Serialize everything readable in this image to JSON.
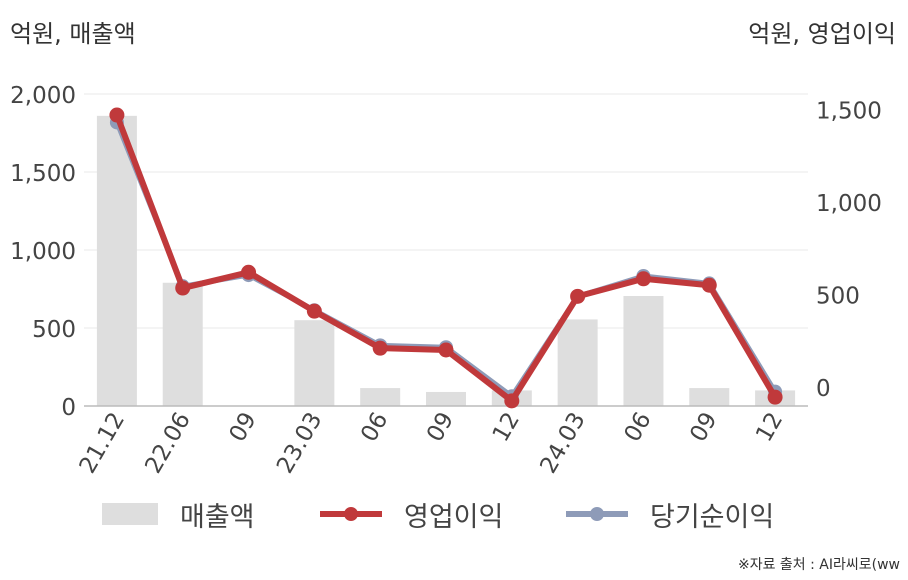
{
  "units": {
    "left": "억원, 매출액",
    "right": "억원, 영업이익"
  },
  "colors": {
    "revenue": "#dedede",
    "operating_profit": "#c0393b",
    "net_income": "#8e9bb8",
    "axis": "#bbbbbb",
    "grid": "#e9e9e9"
  },
  "legend": [
    {
      "key": "revenue",
      "label": "매출액",
      "style": "bar"
    },
    {
      "key": "operating_profit",
      "label": "영업이익",
      "style": "line"
    },
    {
      "key": "net_income",
      "label": "당기순이익",
      "style": "line"
    }
  ],
  "source": "※자료 출처 : AI라씨로(ww",
  "chart_data": {
    "type": "bar+line",
    "categories": [
      "21.12",
      "22.06",
      "09",
      "23.03",
      "06",
      "09",
      "12",
      "24.03",
      "06",
      "09",
      "12"
    ],
    "y_left": {
      "range": [
        0,
        2000
      ],
      "ticks": [
        "0",
        "500",
        "1,000",
        "1,500",
        "2,000"
      ],
      "tick_values": [
        0,
        500,
        1000,
        1500,
        2000
      ]
    },
    "y_right": {
      "range": [
        -100,
        1600
      ],
      "ticks": [
        "0",
        "500",
        "1,000",
        "1,500"
      ],
      "tick_values": [
        0,
        500,
        1000,
        1500
      ]
    },
    "series": [
      {
        "name": "매출액",
        "type": "bar",
        "axis": "left",
        "values": [
          1860,
          790,
          0,
          550,
          115,
          90,
          100,
          555,
          705,
          115,
          100
        ]
      },
      {
        "name": "영업이익",
        "type": "line",
        "axis": "right",
        "values": [
          1470,
          535,
          620,
          410,
          210,
          200,
          -75,
          490,
          585,
          550,
          -55
        ]
      },
      {
        "name": "당기순이익",
        "type": "line",
        "axis": "right",
        "values": [
          1430,
          545,
          605,
          415,
          225,
          215,
          -50,
          490,
          600,
          560,
          -25
        ]
      }
    ],
    "grid": true
  }
}
